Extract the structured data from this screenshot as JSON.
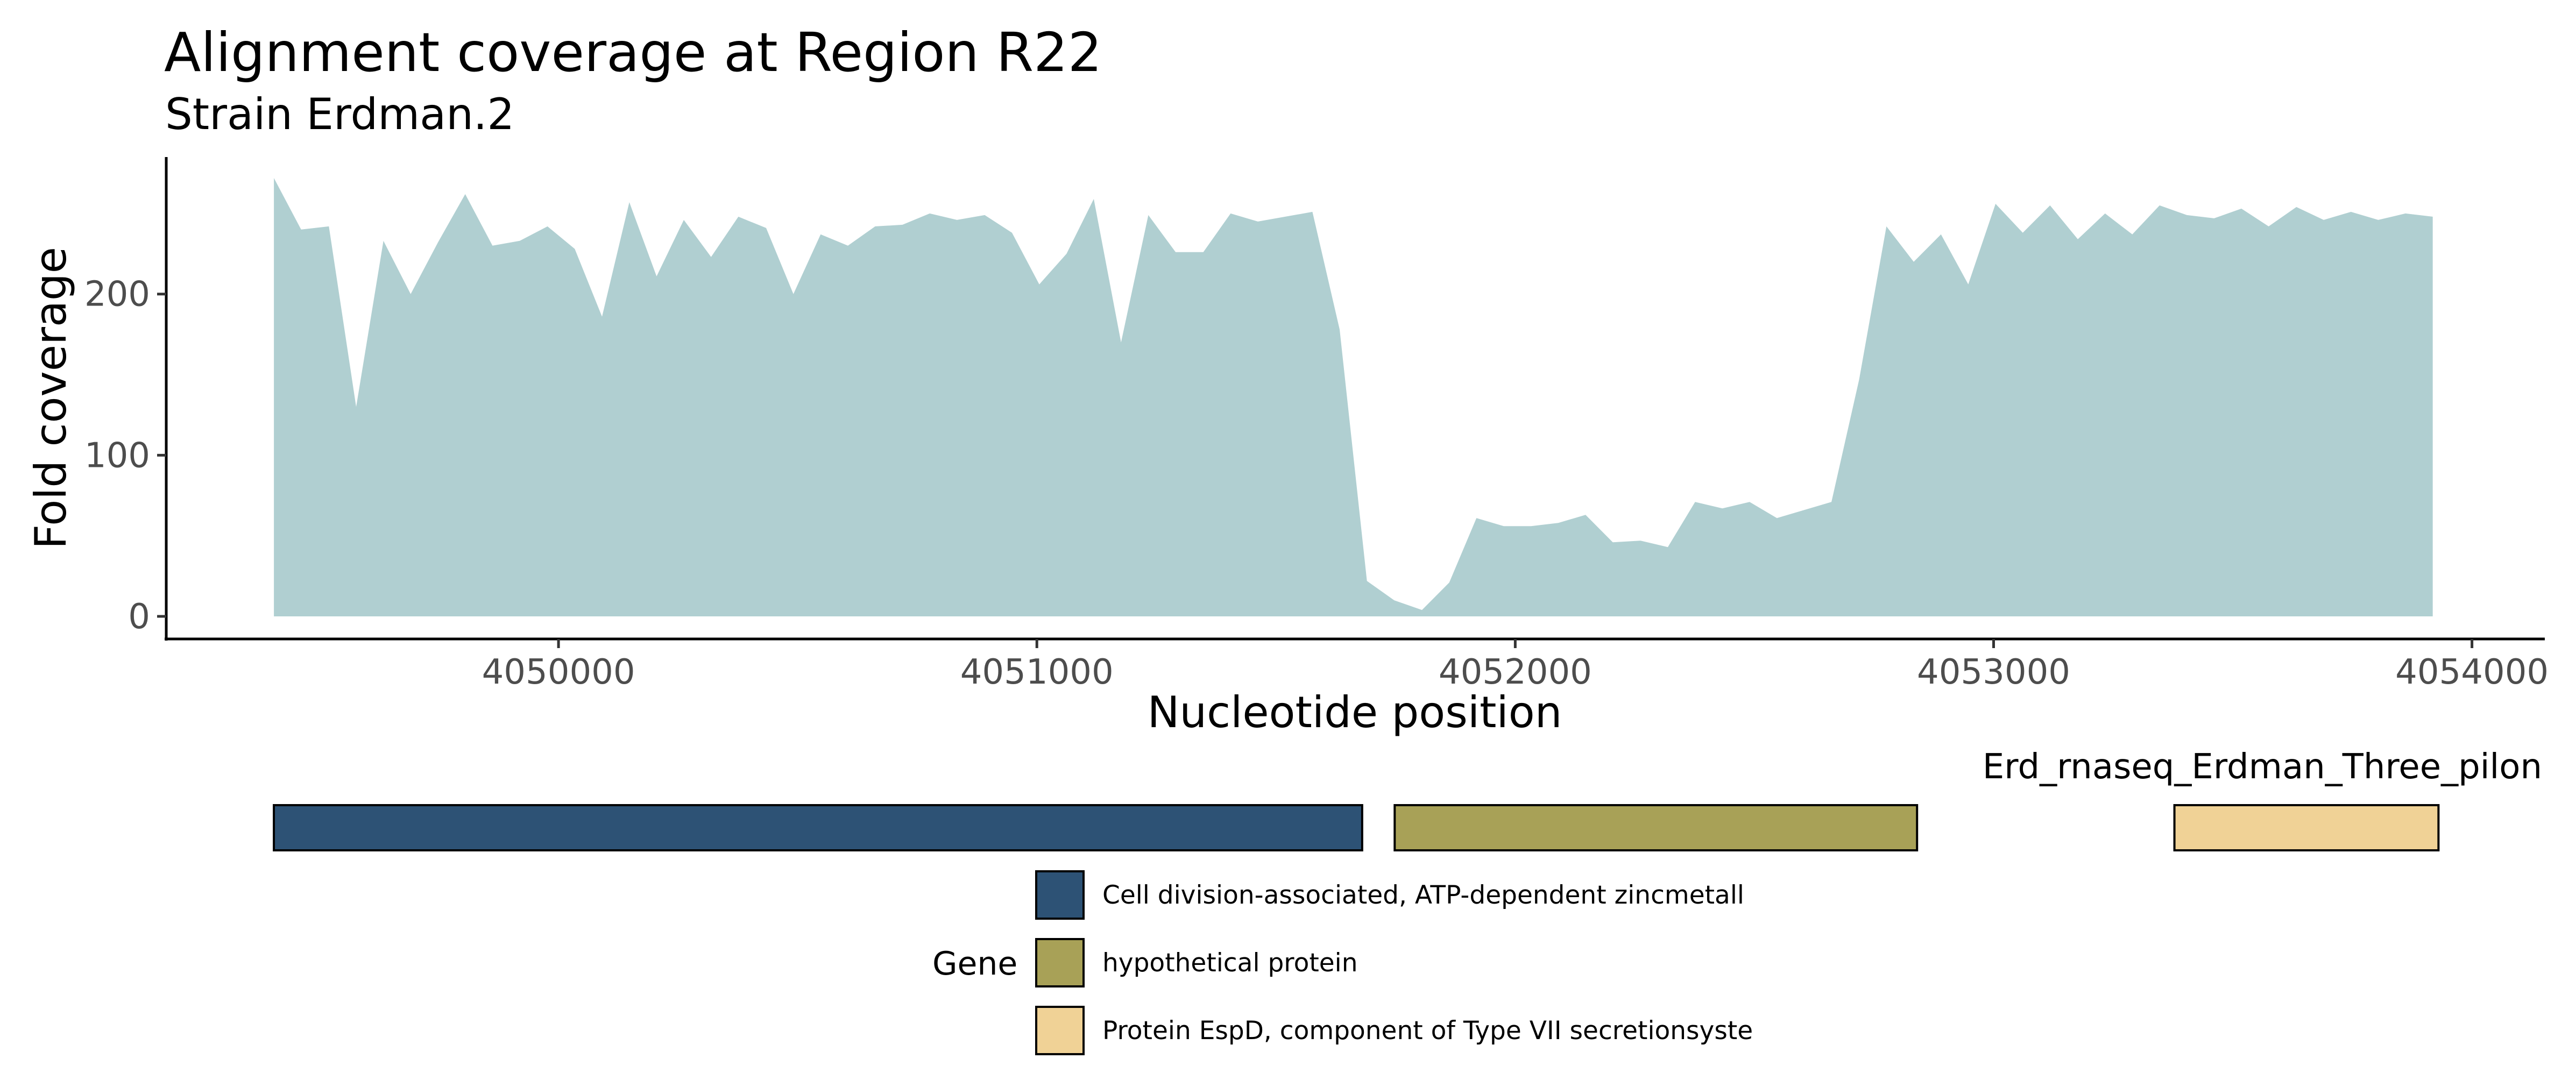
{
  "chart_data": {
    "type": "area",
    "title": "Alignment coverage at Region R22",
    "subtitle": "Strain Erdman.2",
    "xlabel": "Nucleotide position",
    "ylabel": "Fold coverage",
    "xlim": [
      4049180,
      4054150
    ],
    "ylim": [
      -14,
      285
    ],
    "x_ticks": [
      4050000,
      4051000,
      4052000,
      4053000,
      4054000
    ],
    "x_tick_labels": [
      "4050000",
      "4051000",
      "4052000",
      "4053000",
      "4054000"
    ],
    "y_ticks": [
      0,
      100,
      200
    ],
    "y_tick_labels": [
      "0",
      "100",
      "200"
    ],
    "grid": false,
    "area_color": "#b0cfd1",
    "x": [
      4049405,
      4049462,
      4049520,
      4049577,
      4049634,
      4049691,
      4049748,
      4049805,
      4049862,
      4049919,
      4049977,
      4050034,
      4050091,
      4050148,
      4050205,
      4050262,
      4050319,
      4050376,
      4050434,
      4050491,
      4050548,
      4050605,
      4050662,
      4050719,
      4050776,
      4050833,
      4050891,
      4050948,
      4051005,
      4051062,
      4051119,
      4051176,
      4051233,
      4051290,
      4051348,
      4051405,
      4051462,
      4051519,
      4051576,
      4051633,
      4051690,
      4051747,
      4051805,
      4051862,
      4051919,
      4051976,
      4052033,
      4052090,
      4052147,
      4052204,
      4052262,
      4052319,
      4052376,
      4052433,
      4052490,
      4052547,
      4052604,
      4052661,
      4052719,
      4052776,
      4052833,
      4052890,
      4052947,
      4053004,
      4053061,
      4053118,
      4053176,
      4053233,
      4053290,
      4053347,
      4053404,
      4053461,
      4053518,
      4053575,
      4053633,
      4053690,
      4053747,
      4053804,
      4053861,
      4053918
    ],
    "y": [
      272,
      240,
      242,
      130,
      233,
      200,
      232,
      262,
      230,
      233,
      242,
      228,
      186,
      257,
      211,
      246,
      223,
      248,
      241,
      200,
      237,
      230,
      242,
      243,
      250,
      246,
      249,
      238,
      206,
      225,
      259,
      170,
      249,
      226,
      226,
      250,
      245,
      248,
      251,
      178,
      22,
      10,
      4,
      21,
      61,
      56,
      56,
      58,
      63,
      46,
      47,
      43,
      71,
      67,
      71,
      61,
      66,
      71,
      147,
      242,
      220,
      237,
      206,
      256,
      238,
      255,
      234,
      250,
      237,
      255,
      249,
      247,
      253,
      242,
      254,
      246,
      251,
      246,
      250,
      248
    ],
    "gene_track": {
      "label": "Erd_rnaseq_Erdman_Three_pilon",
      "legend_title": "Gene",
      "genes": [
        {
          "name": "Cell division-associated, ATP-dependent zincmetall",
          "start": 4049405,
          "end": 4051680,
          "color": "#2d5275"
        },
        {
          "name": "hypothetical protein",
          "start": 4051748,
          "end": 4052840,
          "color": "#a8a157"
        },
        {
          "name": "Protein EspD, component of Type VII secretionsyste",
          "start": 4053378,
          "end": 4053930,
          "color": "#f0d296"
        }
      ]
    }
  }
}
